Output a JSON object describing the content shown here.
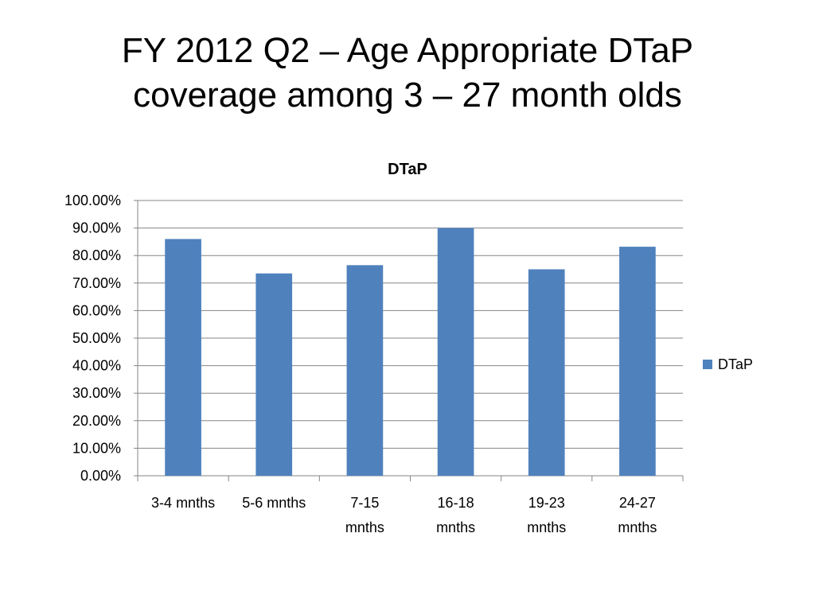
{
  "slide": {
    "title_line1": "FY 2012 Q2 – Age Appropriate DTaP",
    "title_line2": "coverage among 3 – 27 month olds"
  },
  "chart_data": {
    "type": "bar",
    "title": "DTaP",
    "categories": [
      [
        "3-4 mnths"
      ],
      [
        "5-6 mnths"
      ],
      [
        "7-15",
        "mnths"
      ],
      [
        "16-18",
        "mnths"
      ],
      [
        "19-23",
        "mnths"
      ],
      [
        "24-27",
        "mnths"
      ]
    ],
    "series": [
      {
        "name": "DTaP",
        "values": [
          0.86,
          0.735,
          0.765,
          0.9,
          0.75,
          0.832
        ],
        "color": "#4F81BD"
      }
    ],
    "ylim": [
      0,
      1
    ],
    "yticks": [
      "0.00%",
      "10.00%",
      "20.00%",
      "30.00%",
      "40.00%",
      "50.00%",
      "60.00%",
      "70.00%",
      "80.00%",
      "90.00%",
      "100.00%"
    ],
    "grid": true,
    "legend_position": "right"
  }
}
